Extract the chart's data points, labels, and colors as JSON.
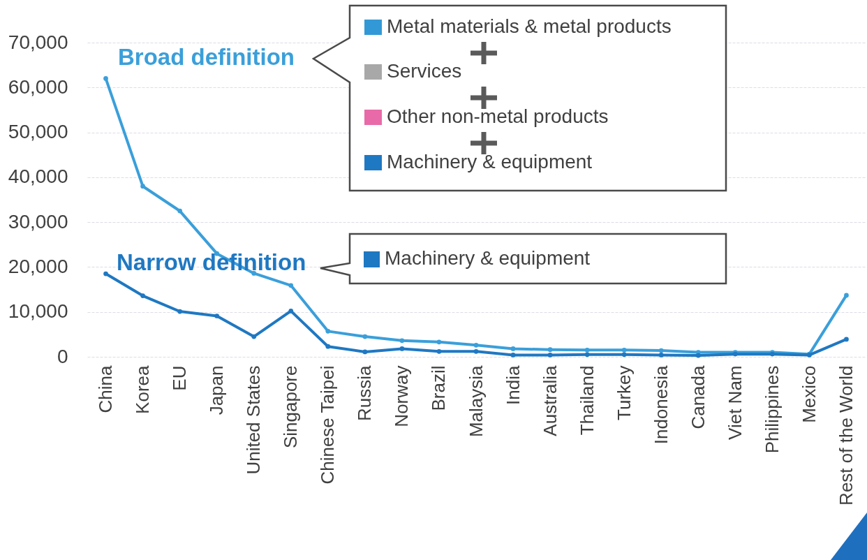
{
  "chart_data": {
    "type": "line",
    "categories": [
      "China",
      "Korea",
      "EU",
      "Japan",
      "United States",
      "Singapore",
      "Chinese Taipei",
      "Russia",
      "Norway",
      "Brazil",
      "Malaysia",
      "India",
      "Australia",
      "Thailand",
      "Turkey",
      "Indonesia",
      "Canada",
      "Viet Nam",
      "Philippines",
      "Mexico",
      "Rest of the World"
    ],
    "series": [
      {
        "name": "Broad definition",
        "color": "#3a9fda",
        "values": [
          62000,
          38000,
          32500,
          23000,
          18600,
          15900,
          5700,
          4500,
          3600,
          3300,
          2600,
          1800,
          1600,
          1500,
          1500,
          1400,
          1000,
          1000,
          1000,
          600,
          13700
        ]
      },
      {
        "name": "Narrow definition",
        "color": "#1f78c2",
        "values": [
          18500,
          13600,
          10100,
          9100,
          4500,
          10200,
          2300,
          1100,
          1800,
          1200,
          1200,
          400,
          400,
          500,
          500,
          400,
          300,
          600,
          600,
          400,
          3900
        ]
      }
    ],
    "ylim": [
      0,
      70000
    ],
    "yticks": [
      0,
      {
        "value": 10000,
        "label": "10,000"
      },
      {
        "value": 20000,
        "label": "20,000"
      },
      {
        "value": 30000,
        "label": "30,000"
      },
      {
        "value": 40000,
        "label": "40,000"
      },
      {
        "value": 50000,
        "label": "50,000"
      },
      {
        "value": 60000,
        "label": "60,000"
      },
      {
        "value": 70000,
        "label": "70,000"
      }
    ],
    "grid": "y",
    "marker": "circle",
    "annotations": [
      "Metal materials & metal products",
      "Services",
      "Other non-metal products",
      "Machinery & equipment",
      "Machinery & equipment"
    ]
  }
}
